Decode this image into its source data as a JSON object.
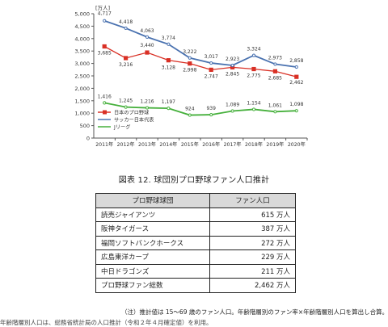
{
  "chart_data": {
    "type": "line",
    "ylabel": "[万人]",
    "ylim": [
      0,
      5000
    ],
    "yticks": [
      "0",
      "500",
      "1,000",
      "1,500",
      "2,000",
      "2,500",
      "3,000",
      "3,500",
      "4,000",
      "4,500",
      "5,000"
    ],
    "ytick_values": [
      0,
      500,
      1000,
      1500,
      2000,
      2500,
      3000,
      3500,
      4000,
      4500,
      5000
    ],
    "categories": [
      "2011年",
      "2012年",
      "2013年",
      "2014年",
      "2015年",
      "2016年",
      "2017年",
      "2018年",
      "2019年",
      "2020年"
    ],
    "grid": false,
    "legend_position": "lower-left",
    "series": [
      {
        "name": "日本のプロ野球",
        "color": "#d93025",
        "marker": "square",
        "values": [
          3685,
          3216,
          3440,
          3128,
          2998,
          2747,
          2845,
          2775,
          2685,
          2462
        ],
        "labels": [
          "3,685",
          "3,216",
          "3,440",
          "3,128",
          "2,998",
          "2,747",
          "2,845",
          "2,775",
          "2,685",
          "2,462"
        ]
      },
      {
        "name": "サッカー日本代表",
        "color": "#4a72b0",
        "marker": "none",
        "values": [
          4717,
          4418,
          4063,
          3774,
          3222,
          3017,
          2923,
          3324,
          2973,
          2858
        ],
        "labels": [
          "4,717",
          "4,418",
          "4,063",
          "3,774",
          "3,222",
          "3,017",
          "2,923",
          "3,324",
          "2,973",
          "2,858"
        ]
      },
      {
        "name": "Jリーグ",
        "color": "#46b03c",
        "marker": "none",
        "values": [
          1416,
          1245,
          1216,
          1197,
          924,
          939,
          1089,
          1154,
          1061,
          1098
        ],
        "labels": [
          "1,416",
          "1,245",
          "1,216",
          "1,197",
          "924",
          "939",
          "1,089",
          "1,154",
          "1,061",
          "1,098"
        ]
      }
    ]
  },
  "caption": "図表 12. 球団別プロ野球ファン人口推計",
  "table": {
    "headers": [
      "プロ野球球団",
      "ファン人口"
    ],
    "rows": [
      {
        "name": "読売ジャイアンツ",
        "value": "615 万人"
      },
      {
        "name": "阪神タイガース",
        "value": "387 万人"
      },
      {
        "name": "福岡ソフトバンクホークス",
        "value": "272 万人"
      },
      {
        "name": "広島東洋カープ",
        "value": "229 万人"
      },
      {
        "name": "中日ドラゴンズ",
        "value": "211 万人"
      },
      {
        "name": "プロ野球ファン総数",
        "value": "2,462 万人"
      }
    ]
  },
  "note": "（注）推計値は 15～69 歳のファン人口。年齢階層別のファン率×年齢階層別人口を算出し合算。",
  "note2": "年齢階層別人口は、総務省統計局の人口推計（令和２年４月確定値）を利用。"
}
